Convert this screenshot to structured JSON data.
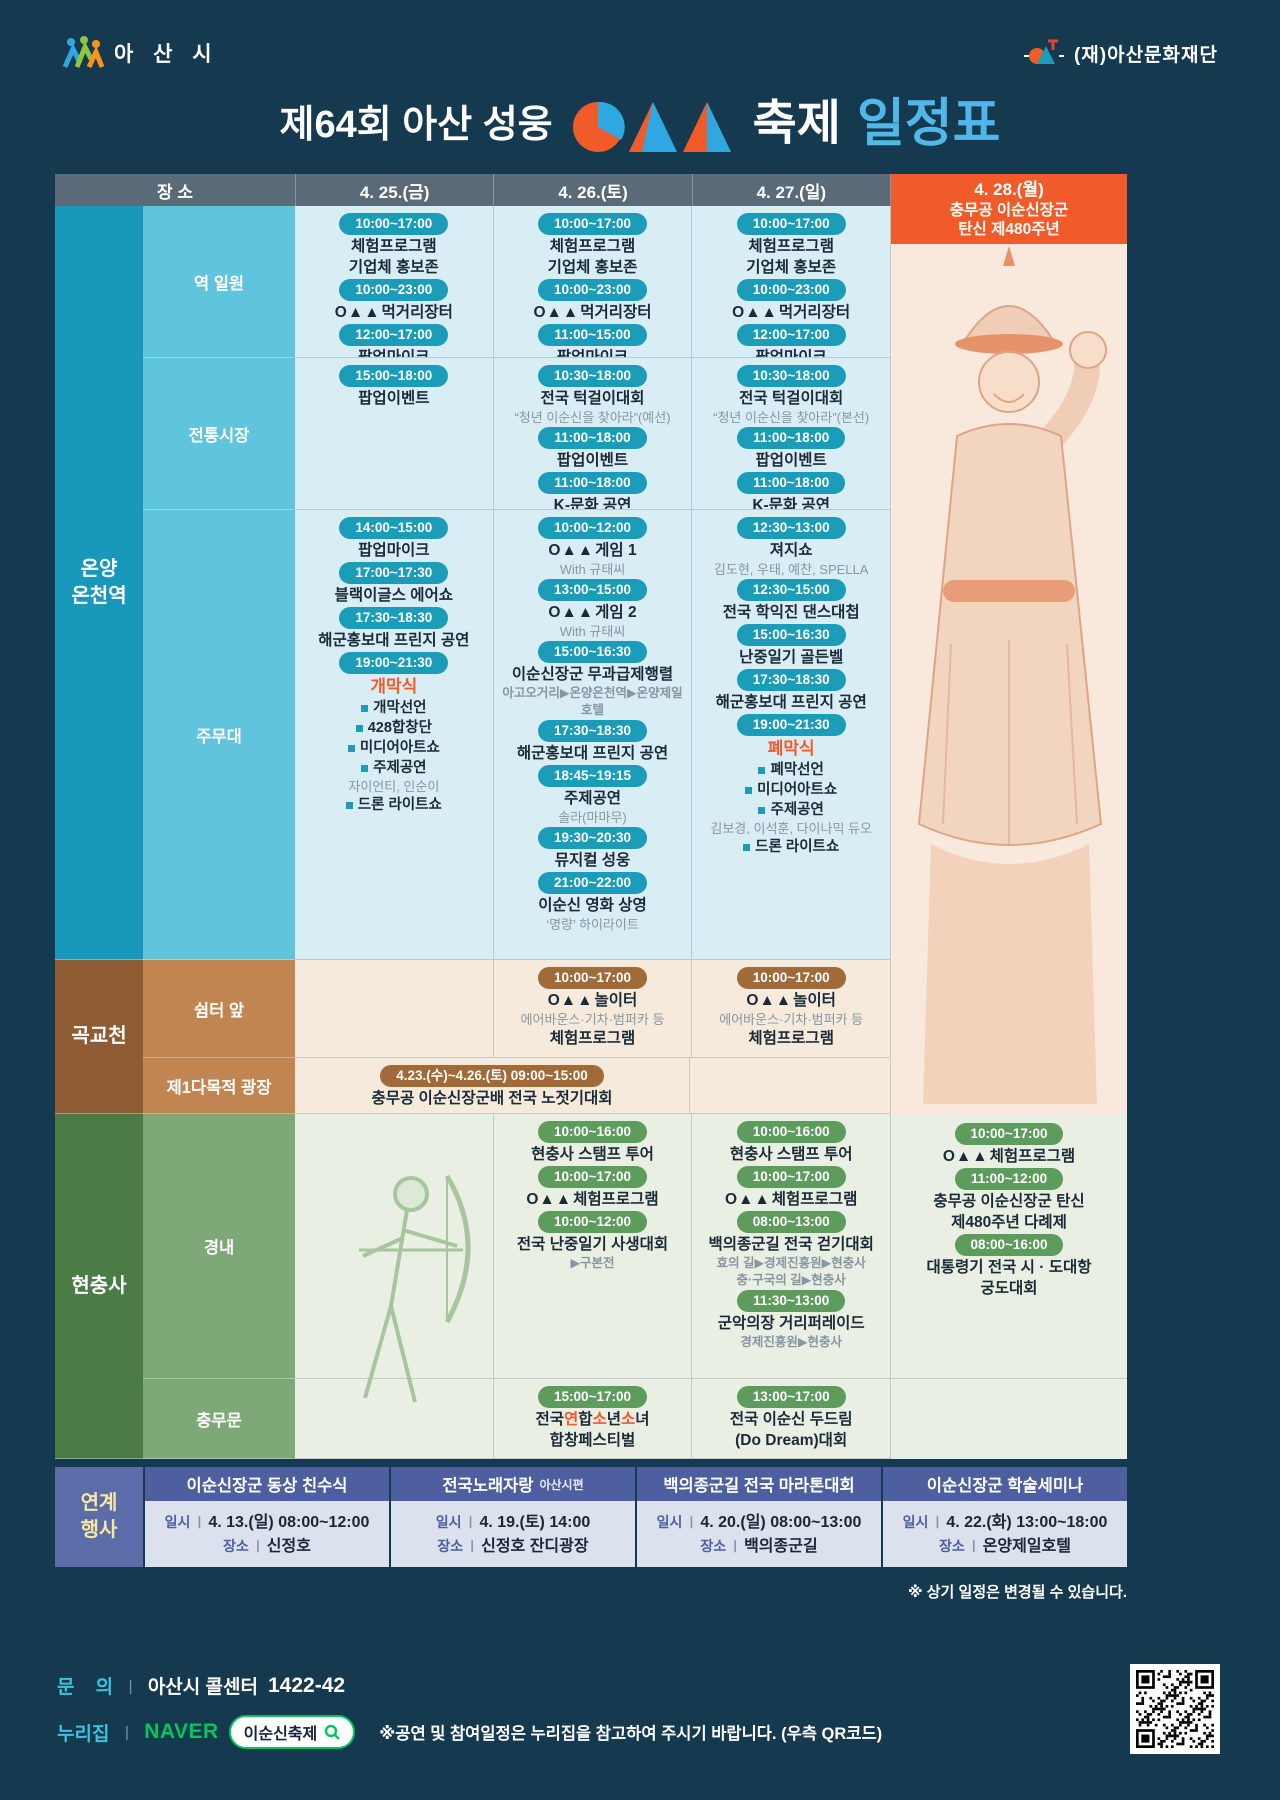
{
  "page": {
    "asan_city": "아 산 시",
    "foundation": "(재)아산문화재단",
    "title_prefix": "제64회 아산 성웅",
    "title_mid": "축제",
    "title_last": "일정표",
    "logo_prefix": "O▲▲",
    "accent_orange": "#F15B2A",
    "accent_blue": "#2FA8E1",
    "naver_green": "#03C75A"
  },
  "table": {
    "header": {
      "place": "장 소",
      "days": [
        "4. 25.(금)",
        "4. 26.(토)",
        "4. 27.(일)"
      ],
      "day4": [
        "4. 28.(월)",
        "충무공 이순신장군",
        "탄신 제480주년"
      ]
    },
    "sections": [
      {
        "id": "onyang",
        "theme": "cyan",
        "group": [
          "온양",
          "온천역"
        ],
        "rows": [
          {
            "id": "yeok",
            "place": "역 일원",
            "cells": [
              [
                {
                  "t": "pill",
                  "text": "10:00~17:00"
                },
                {
                  "t": "title",
                  "text": "체험프로그램"
                },
                {
                  "t": "title",
                  "text": "기업체 홍보존"
                },
                {
                  "t": "pill",
                  "text": "10:00~23:00"
                },
                {
                  "t": "logo",
                  "text": "먹거리장터"
                },
                {
                  "t": "pill",
                  "text": "12:00~17:00"
                },
                {
                  "t": "title",
                  "text": "팝업마이크"
                }
              ],
              [
                {
                  "t": "pill",
                  "text": "10:00~17:00"
                },
                {
                  "t": "title",
                  "text": "체험프로그램"
                },
                {
                  "t": "title",
                  "text": "기업체 홍보존"
                },
                {
                  "t": "pill",
                  "text": "10:00~23:00"
                },
                {
                  "t": "logo",
                  "text": "먹거리장터"
                },
                {
                  "t": "pill",
                  "text": "11:00~15:00"
                },
                {
                  "t": "title",
                  "text": "팝업마이크"
                }
              ],
              [
                {
                  "t": "pill",
                  "text": "10:00~17:00"
                },
                {
                  "t": "title",
                  "text": "체험프로그램"
                },
                {
                  "t": "title",
                  "text": "기업체 홍보존"
                },
                {
                  "t": "pill",
                  "text": "10:00~23:00"
                },
                {
                  "t": "logo",
                  "text": "먹거리장터"
                },
                {
                  "t": "pill",
                  "text": "12:00~17:00"
                },
                {
                  "t": "title",
                  "text": "팝업마이크"
                }
              ]
            ]
          },
          {
            "id": "market",
            "place": "전통시장",
            "cells": [
              [
                {
                  "t": "pill",
                  "text": "15:00~18:00"
                },
                {
                  "t": "title",
                  "text": "팝업이벤트"
                }
              ],
              [
                {
                  "t": "pill",
                  "text": "10:30~18:00"
                },
                {
                  "t": "title",
                  "text": "전국 턱걸이대회"
                },
                {
                  "t": "sub",
                  "text": "“청년 이순신을 찾아라”(예선)"
                },
                {
                  "t": "pill",
                  "text": "11:00~18:00"
                },
                {
                  "t": "title",
                  "text": "팝업이벤트"
                },
                {
                  "t": "pill",
                  "text": "11:00~18:00"
                },
                {
                  "t": "title",
                  "text": "K-문화 공연"
                }
              ],
              [
                {
                  "t": "pill",
                  "text": "10:30~18:00"
                },
                {
                  "t": "title",
                  "text": "전국 턱걸이대회"
                },
                {
                  "t": "sub",
                  "text": "“청년 이순신을 찾아라”(본선)"
                },
                {
                  "t": "pill",
                  "text": "11:00~18:00"
                },
                {
                  "t": "title",
                  "text": "팝업이벤트"
                },
                {
                  "t": "pill",
                  "text": "11:00~18:00"
                },
                {
                  "t": "title",
                  "text": "K-문화 공연"
                }
              ]
            ]
          },
          {
            "id": "stage",
            "place": "주무대",
            "cells": [
              [
                {
                  "t": "pill",
                  "text": "14:00~15:00"
                },
                {
                  "t": "title",
                  "text": "팝업마이크"
                },
                {
                  "t": "pill",
                  "text": "17:00~17:30"
                },
                {
                  "t": "title",
                  "text": "블랙이글스 에어쇼"
                },
                {
                  "t": "pill",
                  "text": "17:30~18:30"
                },
                {
                  "t": "title",
                  "text": "해군홍보대 프린지 공연"
                },
                {
                  "t": "pill",
                  "text": "19:00~21:30"
                },
                {
                  "t": "accent",
                  "text": "개막식"
                },
                {
                  "t": "bullet",
                  "text": "개막선언"
                },
                {
                  "t": "bullet",
                  "text": "428합창단"
                },
                {
                  "t": "bullet",
                  "text": "미디어아트쇼"
                },
                {
                  "t": "bullet",
                  "text": "주제공연"
                },
                {
                  "t": "sub",
                  "text": "자이언티, 인순이"
                },
                {
                  "t": "bullet",
                  "text": "드론 라이트쇼"
                }
              ],
              [
                {
                  "t": "pill",
                  "text": "10:00~12:00"
                },
                {
                  "t": "logo",
                  "text": "게임 1"
                },
                {
                  "t": "sub",
                  "text": "With 규태씨"
                },
                {
                  "t": "pill",
                  "text": "13:00~15:00"
                },
                {
                  "t": "logo",
                  "text": "게임 2"
                },
                {
                  "t": "sub",
                  "text": "With 규태씨"
                },
                {
                  "t": "pill",
                  "text": "15:00~16:30"
                },
                {
                  "t": "title",
                  "text": "이순신장군 무과급제행렬"
                },
                {
                  "t": "route",
                  "text": "아고오거리▶온양온천역▶온양제일호텔"
                },
                {
                  "t": "pill",
                  "text": "17:30~18:30"
                },
                {
                  "t": "title",
                  "text": "해군홍보대 프린지 공연"
                },
                {
                  "t": "pill",
                  "text": "18:45~19:15"
                },
                {
                  "t": "title",
                  "text": "주제공연"
                },
                {
                  "t": "sub",
                  "text": "솔라(마마무)"
                },
                {
                  "t": "pill",
                  "text": "19:30~20:30"
                },
                {
                  "t": "title",
                  "text": "뮤지컬 성웅"
                },
                {
                  "t": "pill",
                  "text": "21:00~22:00"
                },
                {
                  "t": "title",
                  "text": "이순신 영화 상영"
                },
                {
                  "t": "sub",
                  "text": "‘명량’ 하이라이트"
                }
              ],
              [
                {
                  "t": "pill",
                  "text": "12:30~13:00"
                },
                {
                  "t": "title",
                  "text": "져지쇼"
                },
                {
                  "t": "sub",
                  "text": "김도현, 우태, 예찬, SPELLA"
                },
                {
                  "t": "pill",
                  "text": "12:30~15:00"
                },
                {
                  "t": "title",
                  "text": "전국 학익진 댄스대첩"
                },
                {
                  "t": "pill",
                  "text": "15:00~16:30"
                },
                {
                  "t": "title",
                  "text": "난중일기 골든벨"
                },
                {
                  "t": "pill",
                  "text": "17:30~18:30"
                },
                {
                  "t": "title",
                  "text": "해군홍보대 프린지 공연"
                },
                {
                  "t": "pill",
                  "text": "19:00~21:30"
                },
                {
                  "t": "accent",
                  "text": "폐막식"
                },
                {
                  "t": "bullet",
                  "text": "폐막선언"
                },
                {
                  "t": "bullet",
                  "text": "미디어아트쇼"
                },
                {
                  "t": "bullet",
                  "text": "주제공연"
                },
                {
                  "t": "sub",
                  "text": "김보경, 이석훈, 다이나믹 듀오"
                },
                {
                  "t": "bullet",
                  "text": "드론 라이트쇼"
                }
              ]
            ]
          }
        ]
      },
      {
        "id": "gokgyo",
        "theme": "brown",
        "group": [
          "곡교천"
        ],
        "rows": [
          {
            "id": "shelter",
            "place": "쉼터 앞",
            "cells": [
              [],
              [
                {
                  "t": "pill",
                  "text": "10:00~17:00"
                },
                {
                  "t": "logo",
                  "text": "놀이터"
                },
                {
                  "t": "sub",
                  "text": "에어바운스·기차·범퍼카 등"
                },
                {
                  "t": "title",
                  "text": "체험프로그램"
                }
              ],
              [
                {
                  "t": "pill",
                  "text": "10:00~17:00"
                },
                {
                  "t": "logo",
                  "text": "놀이터"
                },
                {
                  "t": "sub",
                  "text": "에어바운스·기차·범퍼카 등"
                },
                {
                  "t": "title",
                  "text": "체험프로그램"
                }
              ]
            ]
          },
          {
            "id": "plaza",
            "place": "제1다목적 광장",
            "span": true,
            "cells": [
              [
                {
                  "t": "pill",
                  "text": "4.23.(수)~4.26.(토) 09:00~15:00"
                },
                {
                  "t": "title",
                  "text": "충무공 이순신장군배 전국 노젓기대회"
                }
              ],
              []
            ]
          }
        ]
      },
      {
        "id": "hyeonchungsa",
        "theme": "green",
        "group": [
          "현충사"
        ],
        "rows": [
          {
            "id": "gyeongnae",
            "place": "경내",
            "cells": [
              [],
              [
                {
                  "t": "pill",
                  "text": "10:00~16:00"
                },
                {
                  "t": "title",
                  "text": "현충사 스탬프 투어"
                },
                {
                  "t": "pill",
                  "text": "10:00~17:00"
                },
                {
                  "t": "logo",
                  "text": "체험프로그램"
                },
                {
                  "t": "pill",
                  "text": "10:00~12:00"
                },
                {
                  "t": "title",
                  "text": "전국 난중일기 사생대회"
                },
                {
                  "t": "route",
                  "text": "▶구본전"
                }
              ],
              [
                {
                  "t": "pill",
                  "text": "10:00~16:00"
                },
                {
                  "t": "title",
                  "text": "현충사 스탬프 투어"
                },
                {
                  "t": "pill",
                  "text": "10:00~17:00"
                },
                {
                  "t": "logo",
                  "text": "체험프로그램"
                },
                {
                  "t": "pill",
                  "text": "08:00~13:00"
                },
                {
                  "t": "title",
                  "text": "백의종군길 전국 걷기대회"
                },
                {
                  "t": "route",
                  "text": "효의 길▶경제진흥원▶현충사"
                },
                {
                  "t": "route",
                  "text": "충·구국의 길▶현충사"
                },
                {
                  "t": "pill",
                  "text": "11:30~13:00"
                },
                {
                  "t": "title",
                  "text": "군악의장 거리퍼레이드"
                },
                {
                  "t": "route",
                  "text": "경제진흥원▶현충사"
                }
              ]
            ]
          },
          {
            "id": "chungmumun",
            "place": "충무문",
            "cells": [
              [],
              [
                {
                  "t": "pill",
                  "text": "15:00~17:00"
                },
                {
                  "t": "mixed",
                  "parts": [
                    {
                      "text": "전국"
                    },
                    {
                      "text": "연",
                      "accent": true
                    },
                    {
                      "text": "합"
                    },
                    {
                      "text": "소",
                      "accent": true
                    },
                    {
                      "text": "년"
                    },
                    {
                      "text": "소",
                      "accent": true
                    },
                    {
                      "text": "녀"
                    }
                  ]
                },
                {
                  "t": "title",
                  "text": "합창페스티벌"
                }
              ],
              [
                {
                  "t": "pill",
                  "text": "13:00~17:00"
                },
                {
                  "t": "title",
                  "text": "전국 이순신 두드림"
                },
                {
                  "t": "title",
                  "text": "(Do Dream)대회"
                }
              ]
            ]
          }
        ]
      }
    ],
    "day4": {
      "gyeongnae": [
        {
          "t": "pill",
          "text": "10:00~17:00"
        },
        {
          "t": "logo",
          "text": "체험프로그램"
        },
        {
          "t": "pill",
          "text": "11:00~12:00"
        },
        {
          "t": "title",
          "text": "충무공 이순신장군 탄신"
        },
        {
          "t": "title",
          "text": "제480주년 다례제"
        },
        {
          "t": "pill",
          "text": "08:00~16:00"
        },
        {
          "t": "title",
          "text": "대통령기 전국 시 · 도대항"
        },
        {
          "t": "title",
          "text": "궁도대회"
        }
      ]
    }
  },
  "linked": {
    "group": [
      "연계",
      "행사"
    ],
    "when_label": "일시",
    "where_label": "장소",
    "sep": "ㅣ",
    "events": [
      {
        "title": "이순신장군 동상 친수식",
        "suffix": "",
        "when": "4. 13.(일) 08:00~12:00",
        "where": "신정호"
      },
      {
        "title": "전국노래자랑",
        "suffix": "아산시편",
        "when": "4. 19.(토) 14:00",
        "where": "신정호 잔디광장"
      },
      {
        "title": "백의종군길 전국 마라톤대회",
        "suffix": "",
        "when": "4. 20.(일) 08:00~13:00",
        "where": "백의종군길"
      },
      {
        "title": "이순신장군 학술세미나",
        "suffix": "",
        "when": "4. 22.(화) 13:00~18:00",
        "where": "온양제일호텔"
      }
    ]
  },
  "note": "※ 상기 일정은 변경될 수 있습니다.",
  "footer": {
    "inquiry_label": "문    의",
    "sep": "ㅣ",
    "inquiry_text": "아산시 콜센터",
    "inquiry_number": "1422-42",
    "web_label": "누리집",
    "naver": "NAVER",
    "search_text": "이순신축제",
    "note": "※공연 및 참여일정은 누리집을 참고하여 주시기 바랍니다. (우측 QR코드)"
  }
}
